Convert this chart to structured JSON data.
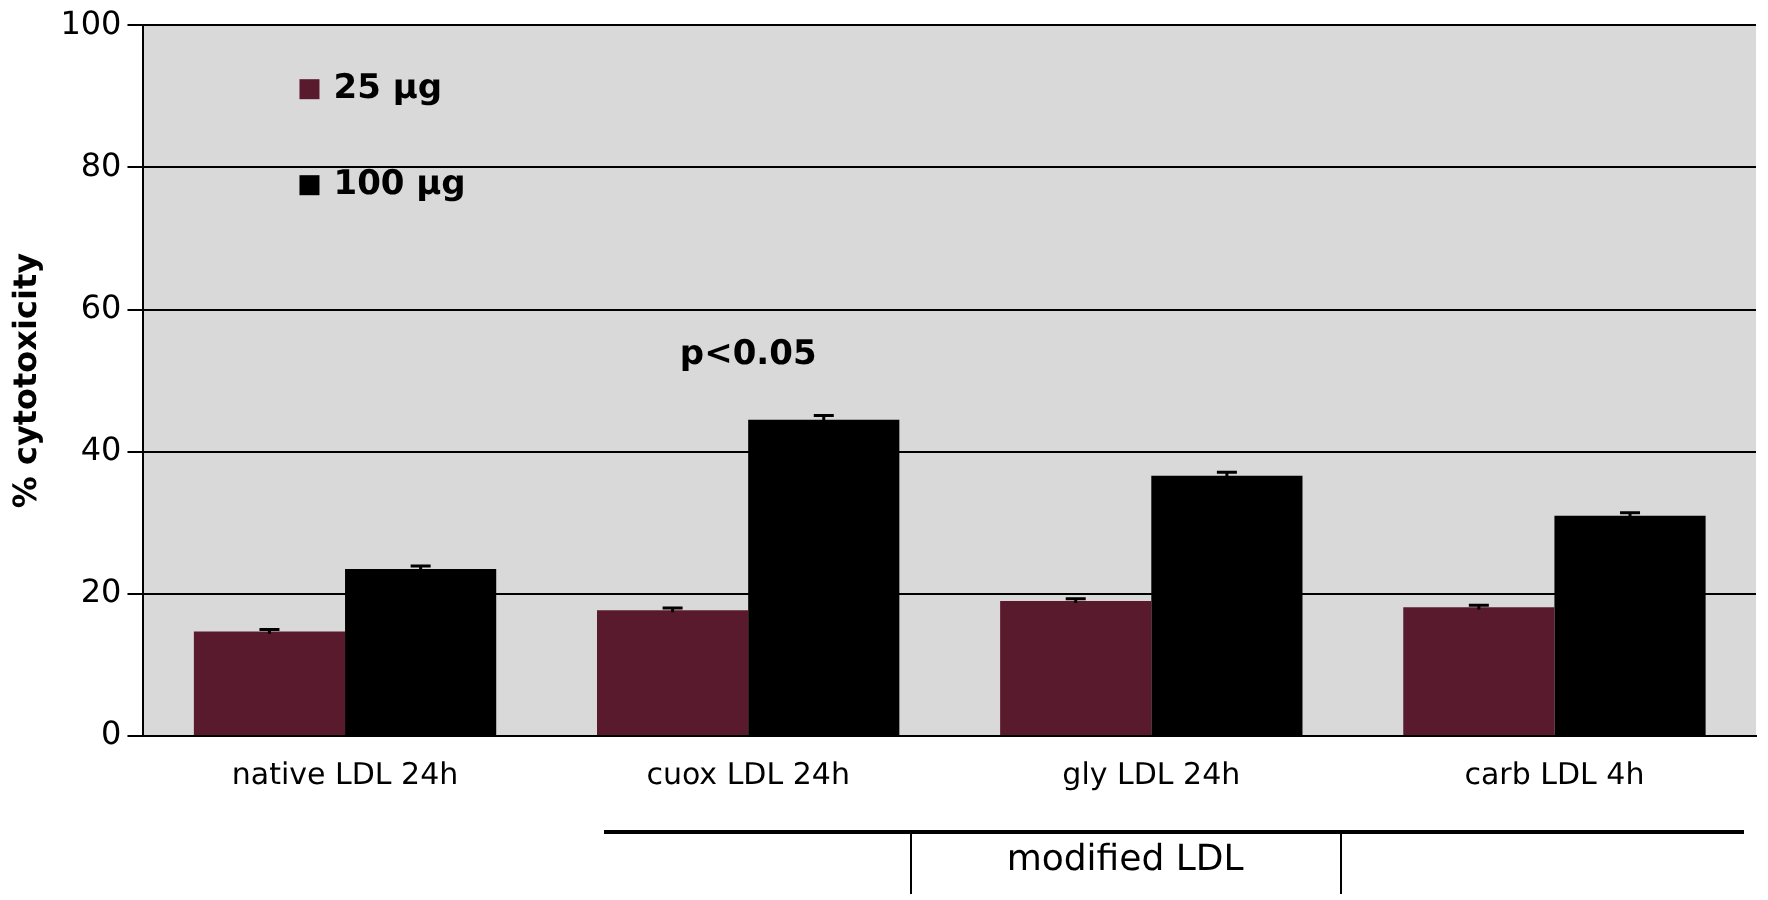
{
  "chart_data": {
    "type": "bar",
    "ylabel": "% cytotoxicity",
    "categories": [
      "native LDL 24h",
      "cuox LDL 24h",
      "gly LDL 24h",
      "carb LDL 4h"
    ],
    "series": [
      {
        "name": "25 µg",
        "color": "#5a1a2e",
        "values": [
          14.7,
          17.7,
          19,
          18.1
        ],
        "errors": [
          0.3,
          0.3,
          0.3,
          0.3
        ]
      },
      {
        "name": "100 µg",
        "color": "#000000",
        "values": [
          23.5,
          44.5,
          36.6,
          31
        ],
        "errors": [
          0.4,
          0.6,
          0.5,
          0.4
        ]
      }
    ],
    "ylim": [
      0,
      100
    ],
    "yticks": [
      0,
      20,
      40,
      60,
      80,
      100
    ],
    "grid": "y",
    "legend": "top left",
    "annotations": [
      {
        "text": "p<0.05",
        "x": "cuox LDL 24h",
        "y": 44.5
      },
      "modified LDL"
    ]
  }
}
